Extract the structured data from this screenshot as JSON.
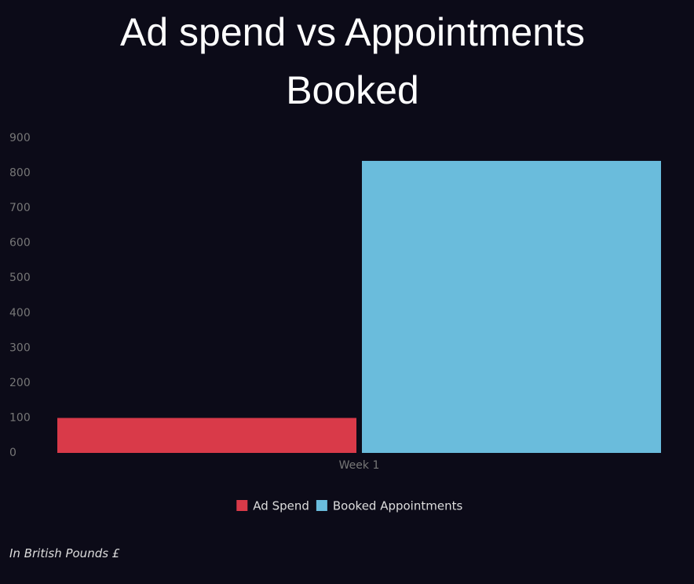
{
  "chart_data": {
    "type": "bar",
    "title": "Ad spend vs Appointments Booked",
    "categories": [
      "Week 1"
    ],
    "series": [
      {
        "name": "Ad Spend",
        "color": "#d93a49",
        "values": [
          100
        ]
      },
      {
        "name": "Booked Appointments",
        "color": "#6abcdc",
        "values": [
          835
        ]
      }
    ],
    "ylim": [
      0,
      900
    ],
    "yticks": [
      0,
      100,
      200,
      300,
      400,
      500,
      600,
      700,
      800,
      900
    ],
    "grid": false,
    "legend": "bottom",
    "footnote": "In British Pounds £"
  }
}
